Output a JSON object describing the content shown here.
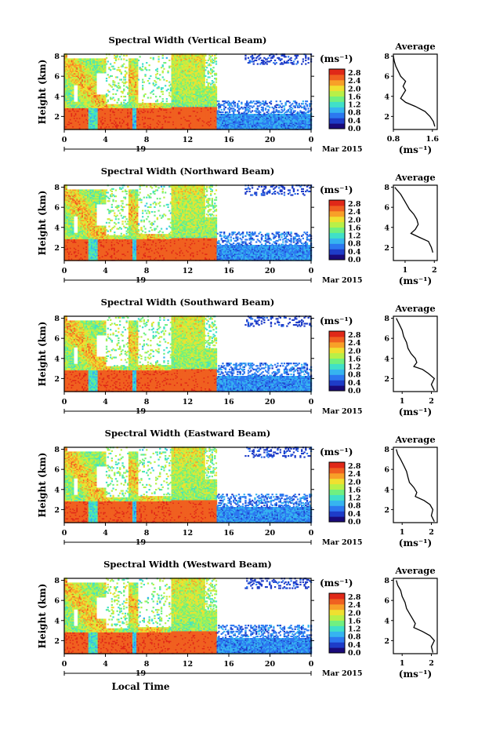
{
  "chart_data": {
    "type": "heatmap",
    "xlabel": "Local Time",
    "date_label": "19",
    "month_label": "Mar 2015",
    "ylabel": "Height (km)",
    "unit_label": "(ms⁻¹)",
    "x_ticks": [
      "0",
      "4",
      "8",
      "12",
      "16",
      "20",
      "0"
    ],
    "y_ticks": [
      "2",
      "4",
      "6",
      "8"
    ],
    "xlim": [
      0,
      24
    ],
    "ylim": [
      0.7,
      8.2
    ],
    "colorbar": {
      "ticks": [
        "0.0",
        "0.4",
        "0.8",
        "1.2",
        "1.6",
        "2.0",
        "2.4",
        "2.8"
      ],
      "range": [
        0,
        3.0
      ],
      "colors": [
        "#1a0a7a",
        "#1e3cc8",
        "#2c78f0",
        "#36b4f0",
        "#40e0c8",
        "#70f080",
        "#b8f048",
        "#f0e030",
        "#f8a028",
        "#f06020",
        "#e02818"
      ]
    },
    "panels": [
      {
        "title": "Spectral Width (Vertical Beam)",
        "avg_title": "Average",
        "avg_ticks": [
          "0.8",
          "1.6"
        ],
        "avg_range": [
          0.8,
          1.7
        ],
        "avg_profile": [
          [
            1.65,
            1.0
          ],
          [
            1.62,
            1.5
          ],
          [
            1.55,
            2.0
          ],
          [
            1.45,
            2.5
          ],
          [
            1.25,
            3.0
          ],
          [
            1.05,
            3.4
          ],
          [
            0.95,
            3.8
          ],
          [
            1.0,
            4.2
          ],
          [
            1.05,
            4.6
          ],
          [
            1.0,
            5.0
          ],
          [
            1.05,
            5.5
          ],
          [
            0.95,
            6.0
          ],
          [
            0.9,
            6.5
          ],
          [
            0.85,
            7.0
          ],
          [
            0.82,
            7.5
          ],
          [
            0.8,
            8.0
          ]
        ]
      },
      {
        "title": "Spectral Width (Northward Beam)",
        "avg_title": "Average",
        "avg_ticks": [
          "1",
          "2"
        ],
        "avg_range": [
          0.6,
          2.1
        ],
        "avg_profile": [
          [
            1.95,
            1.5
          ],
          [
            1.9,
            2.0
          ],
          [
            1.8,
            2.6
          ],
          [
            1.5,
            3.0
          ],
          [
            1.2,
            3.4
          ],
          [
            1.35,
            3.8
          ],
          [
            1.45,
            4.3
          ],
          [
            1.4,
            4.8
          ],
          [
            1.3,
            5.3
          ],
          [
            1.15,
            5.8
          ],
          [
            1.05,
            6.3
          ],
          [
            0.95,
            6.8
          ],
          [
            0.85,
            7.3
          ],
          [
            0.7,
            7.8
          ],
          [
            0.65,
            8.0
          ]
        ]
      },
      {
        "title": "Spectral Width (Southward Beam)",
        "avg_title": "Average",
        "avg_ticks": [
          "1",
          "2"
        ],
        "avg_range": [
          0.7,
          2.2
        ],
        "avg_profile": [
          [
            2.1,
            0.8
          ],
          [
            2.0,
            1.4
          ],
          [
            2.1,
            2.0
          ],
          [
            1.9,
            2.5
          ],
          [
            1.7,
            2.9
          ],
          [
            1.4,
            3.2
          ],
          [
            1.5,
            3.6
          ],
          [
            1.45,
            4.0
          ],
          [
            1.3,
            4.5
          ],
          [
            1.2,
            5.0
          ],
          [
            1.15,
            5.6
          ],
          [
            1.05,
            6.2
          ],
          [
            1.0,
            6.8
          ],
          [
            0.9,
            7.4
          ],
          [
            0.8,
            8.0
          ]
        ]
      },
      {
        "title": "Spectral Width (Eastward Beam)",
        "avg_title": "Average",
        "avg_ticks": [
          "1",
          "2"
        ],
        "avg_range": [
          0.7,
          2.2
        ],
        "avg_profile": [
          [
            2.1,
            0.8
          ],
          [
            2.0,
            1.4
          ],
          [
            2.05,
            2.0
          ],
          [
            1.95,
            2.5
          ],
          [
            1.75,
            2.9
          ],
          [
            1.45,
            3.3
          ],
          [
            1.5,
            3.7
          ],
          [
            1.4,
            4.2
          ],
          [
            1.25,
            4.7
          ],
          [
            1.2,
            5.2
          ],
          [
            1.15,
            5.8
          ],
          [
            1.05,
            6.4
          ],
          [
            0.95,
            7.0
          ],
          [
            0.85,
            7.5
          ],
          [
            0.8,
            8.0
          ]
        ]
      },
      {
        "title": "Spectral Width (Westward Beam)",
        "avg_title": "Average",
        "avg_ticks": [
          "1",
          "2"
        ],
        "avg_range": [
          0.7,
          2.2
        ],
        "avg_profile": [
          [
            2.05,
            0.8
          ],
          [
            2.0,
            1.4
          ],
          [
            2.1,
            2.0
          ],
          [
            1.95,
            2.5
          ],
          [
            1.7,
            2.9
          ],
          [
            1.4,
            3.3
          ],
          [
            1.45,
            3.7
          ],
          [
            1.35,
            4.2
          ],
          [
            1.25,
            4.7
          ],
          [
            1.15,
            5.2
          ],
          [
            1.1,
            5.8
          ],
          [
            1.0,
            6.4
          ],
          [
            0.95,
            7.0
          ],
          [
            0.85,
            7.5
          ],
          [
            0.8,
            8.0
          ]
        ]
      }
    ]
  }
}
